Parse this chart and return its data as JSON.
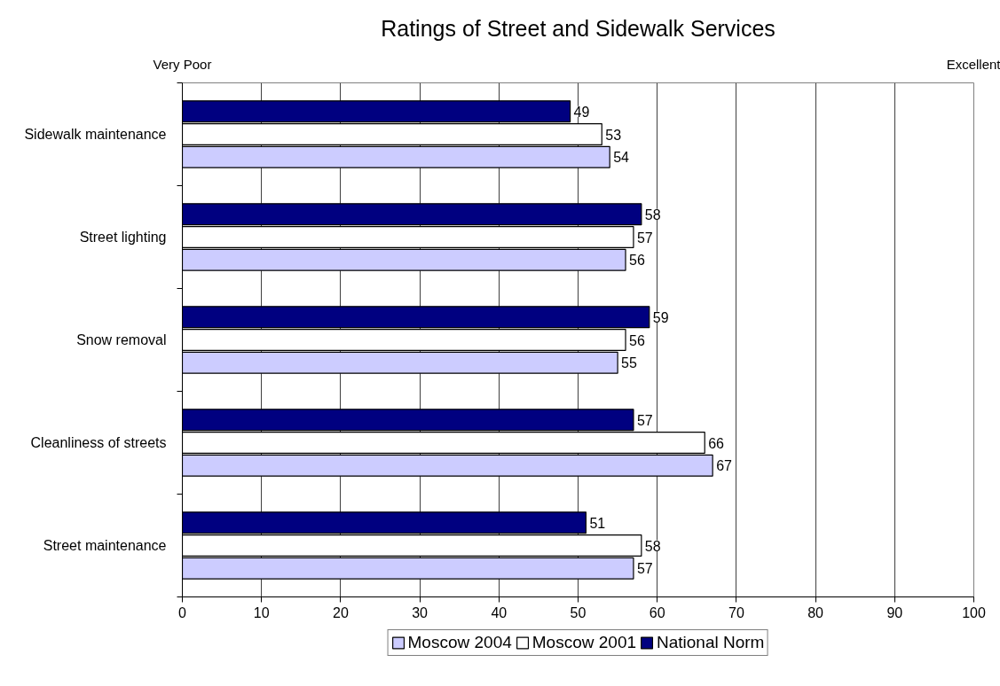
{
  "chart_data": {
    "type": "bar",
    "orientation": "horizontal",
    "title": "Ratings of Street and Sidewalk Services",
    "annotations": [
      "Very Poor",
      "Excellent"
    ],
    "categories": [
      "Sidewalk maintenance",
      "Street lighting",
      "Snow removal",
      "Cleanliness of streets",
      "Street maintenance"
    ],
    "series": [
      {
        "name": "Moscow 2004",
        "color": "#ccccff",
        "values": [
          54,
          56,
          55,
          67,
          57
        ]
      },
      {
        "name": "Moscow 2001",
        "color": "#ffffff",
        "values": [
          53,
          57,
          56,
          66,
          58
        ]
      },
      {
        "name": "National Norm",
        "color": "#000080",
        "values": [
          49,
          58,
          59,
          57,
          51
        ]
      }
    ],
    "xlim": [
      0,
      100
    ],
    "xticks": [
      0,
      10,
      20,
      30,
      40,
      50,
      60,
      70,
      80,
      90,
      100
    ],
    "grid": "x",
    "legend": "bottom",
    "data_labels": true
  }
}
